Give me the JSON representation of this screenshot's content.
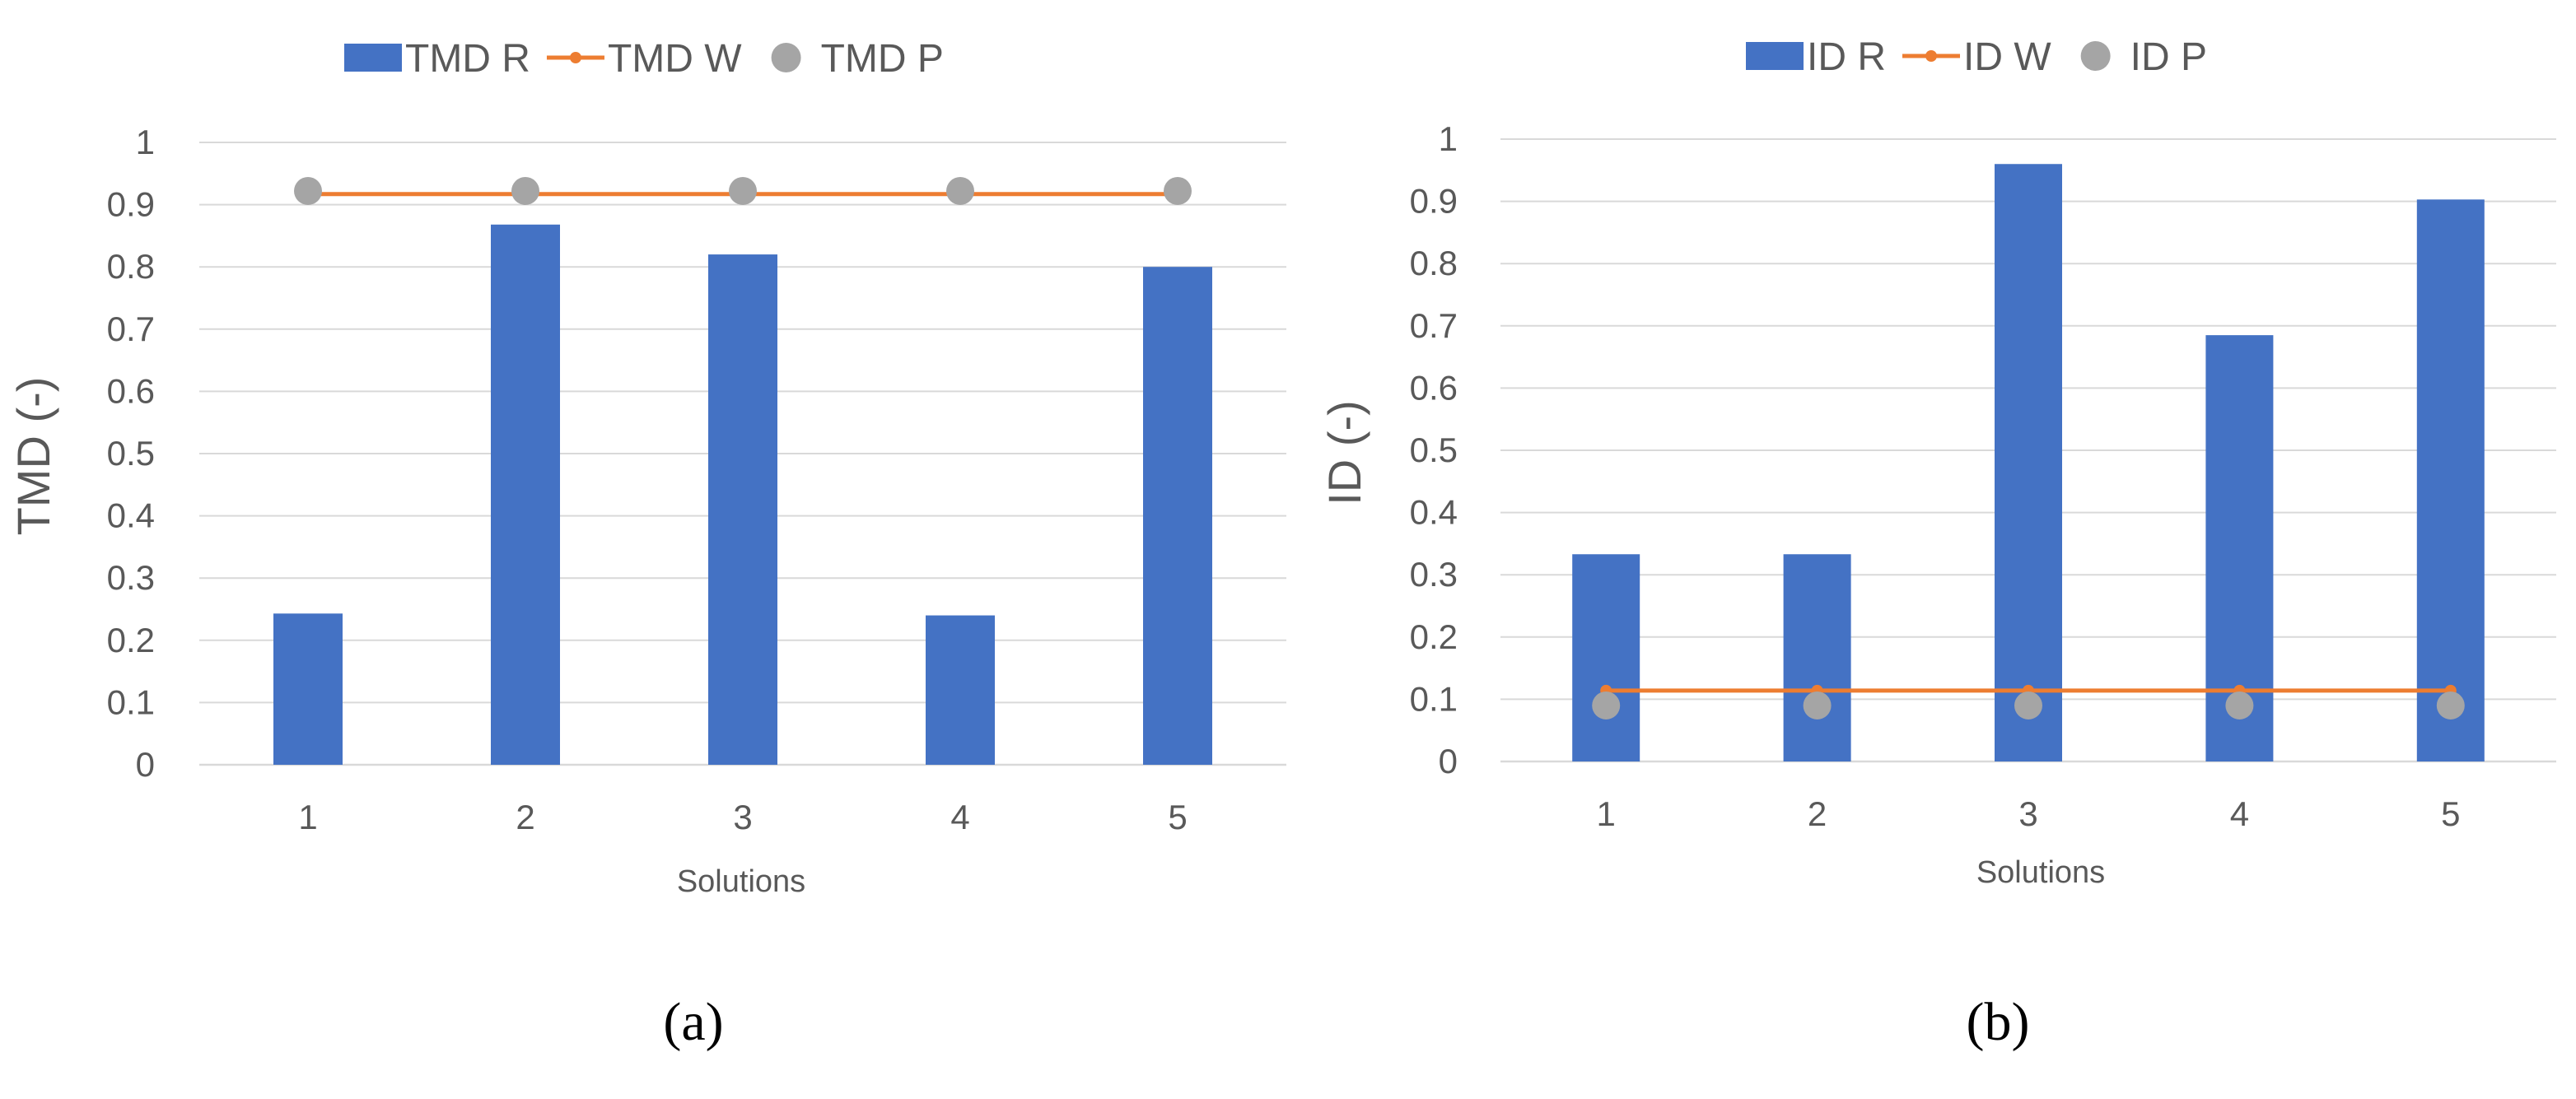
{
  "chart_data": [
    {
      "type": "bar",
      "caption": "(a)",
      "categories": [
        "1",
        "2",
        "3",
        "4",
        "5"
      ],
      "series": [
        {
          "name": "TMD R",
          "kind": "bar",
          "values": [
            0.243,
            0.868,
            0.82,
            0.24,
            0.8
          ]
        },
        {
          "name": "TMD W",
          "kind": "line",
          "values": [
            0.917,
            0.917,
            0.917,
            0.917,
            0.917
          ]
        },
        {
          "name": "TMD P",
          "kind": "marker",
          "values": [
            0.922,
            0.922,
            0.922,
            0.922,
            0.922
          ]
        }
      ],
      "title": "",
      "xlabel": "Solutions",
      "ylabel": "TMD (-)",
      "ylim": [
        0,
        1
      ],
      "yticks": [
        "0",
        "0.1",
        "0.2",
        "0.3",
        "0.4",
        "0.5",
        "0.6",
        "0.7",
        "0.8",
        "0.9",
        "1"
      ],
      "grid": true,
      "legend_position": "top"
    },
    {
      "type": "bar",
      "caption": "(b)",
      "categories": [
        "1",
        "2",
        "3",
        "4",
        "5"
      ],
      "series": [
        {
          "name": "ID R",
          "kind": "bar",
          "values": [
            0.333,
            0.333,
            0.96,
            0.685,
            0.903
          ]
        },
        {
          "name": "ID W",
          "kind": "line",
          "values": [
            0.114,
            0.114,
            0.114,
            0.114,
            0.114
          ]
        },
        {
          "name": "ID P",
          "kind": "marker",
          "values": [
            0.09,
            0.09,
            0.09,
            0.09,
            0.09
          ]
        }
      ],
      "title": "",
      "xlabel": "Solutions",
      "ylabel": "ID (-)",
      "ylim": [
        0,
        1
      ],
      "yticks": [
        "0",
        "0.1",
        "0.2",
        "0.3",
        "0.4",
        "0.5",
        "0.6",
        "0.7",
        "0.8",
        "0.9",
        "1"
      ],
      "grid": true,
      "legend_position": "top"
    }
  ],
  "colors": {
    "bar": "#4472c4",
    "line": "#ed7d31",
    "marker": "#a5a5a5",
    "grid": "#d9d9d9",
    "text": "#595959"
  }
}
